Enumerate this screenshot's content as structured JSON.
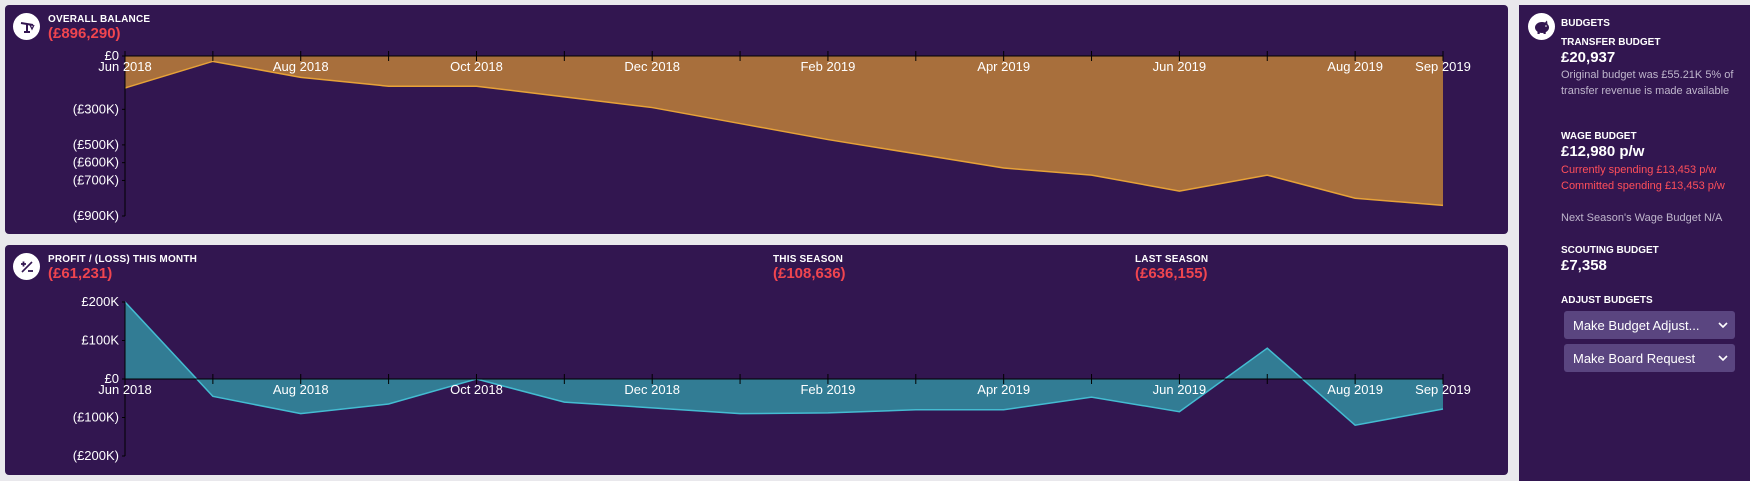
{
  "balance": {
    "title": "OVERALL BALANCE",
    "value": "(£896,290)",
    "icon": "scale-icon"
  },
  "profit": {
    "title": "PROFIT / (LOSS) THIS MONTH",
    "value": "(£61,231)",
    "this_season_label": "THIS SEASON",
    "this_season_value": "(£108,636)",
    "last_season_label": "LAST SEASON",
    "last_season_value": "(£636,155)",
    "icon": "plus-minus-icon"
  },
  "budgets": {
    "title": "BUDGETS",
    "icon": "piggy-bank-icon",
    "transfer_label": "TRANSFER BUDGET",
    "transfer_value": "£20,937",
    "transfer_note": "Original budget was £55.21K 5% of transfer revenue is made available",
    "wage_label": "WAGE BUDGET",
    "wage_value": "£12,980 p/w",
    "wage_current": "Currently spending £13,453 p/w",
    "wage_committed": "Committed spending £13,453 p/w",
    "wage_next": "Next Season's Wage Budget N/A",
    "scouting_label": "SCOUTING BUDGET",
    "scouting_value": "£7,358",
    "adjust_label": "ADJUST BUDGETS",
    "adjust_dropdown": "Make Budget Adjust...",
    "board_dropdown": "Make Board Request"
  },
  "colors": {
    "panel_bg": "#321650",
    "balance_fill": "#a86f3c",
    "balance_line": "#e7a238",
    "profit_fill": "#327c94",
    "profit_line": "#44bcd2",
    "negative": "#f0454f"
  },
  "chart_data": [
    {
      "type": "area",
      "x": [
        "Jun 2018",
        "Jul 2018",
        "Aug 2018",
        "Sep 2018",
        "Oct 2018",
        "Nov 2018",
        "Dec 2018",
        "Jan 2019",
        "Feb 2019",
        "Mar 2019",
        "Apr 2019",
        "May 2019",
        "Jun 2019",
        "Jul 2019",
        "Aug 2019",
        "Sep 2019"
      ],
      "x_tick_labels": [
        "Jun 2018",
        "Aug 2018",
        "Oct 2018",
        "Dec 2018",
        "Feb 2019",
        "Apr 2019",
        "Jun 2019",
        "Aug 2019",
        "Sep 2019"
      ],
      "values": [
        -180000,
        -30000,
        -120000,
        -170000,
        -170000,
        -230000,
        -290000,
        -380000,
        -470000,
        -550000,
        -630000,
        -670000,
        -760000,
        -670000,
        -800000,
        -840000
      ],
      "y_tick_labels": [
        "£0",
        "(£300K)",
        "(£500K)",
        "(£600K)",
        "(£700K)",
        "(£900K)"
      ],
      "ylim": [
        -900000,
        0
      ]
    },
    {
      "type": "area",
      "x": [
        "Jun 2018",
        "Jul 2018",
        "Aug 2018",
        "Sep 2018",
        "Oct 2018",
        "Nov 2018",
        "Dec 2018",
        "Jan 2019",
        "Feb 2019",
        "Mar 2019",
        "Apr 2019",
        "May 2019",
        "Jun 2019",
        "Jul 2019",
        "Aug 2019",
        "Sep 2019"
      ],
      "x_tick_labels": [
        "Jun 2018",
        "Aug 2018",
        "Oct 2018",
        "Dec 2018",
        "Feb 2019",
        "Apr 2019",
        "Jun 2019",
        "Aug 2019",
        "Sep 2019"
      ],
      "values": [
        200000,
        -45000,
        -90000,
        -65000,
        0,
        -60000,
        -75000,
        -90000,
        -88000,
        -80000,
        -80000,
        -47000,
        -85000,
        80000,
        -120000,
        -78000
      ],
      "y_tick_labels": [
        "£200K",
        "£100K",
        "£0",
        "(£100K)",
        "(£200K)"
      ],
      "ylim": [
        -200000,
        200000
      ]
    }
  ]
}
